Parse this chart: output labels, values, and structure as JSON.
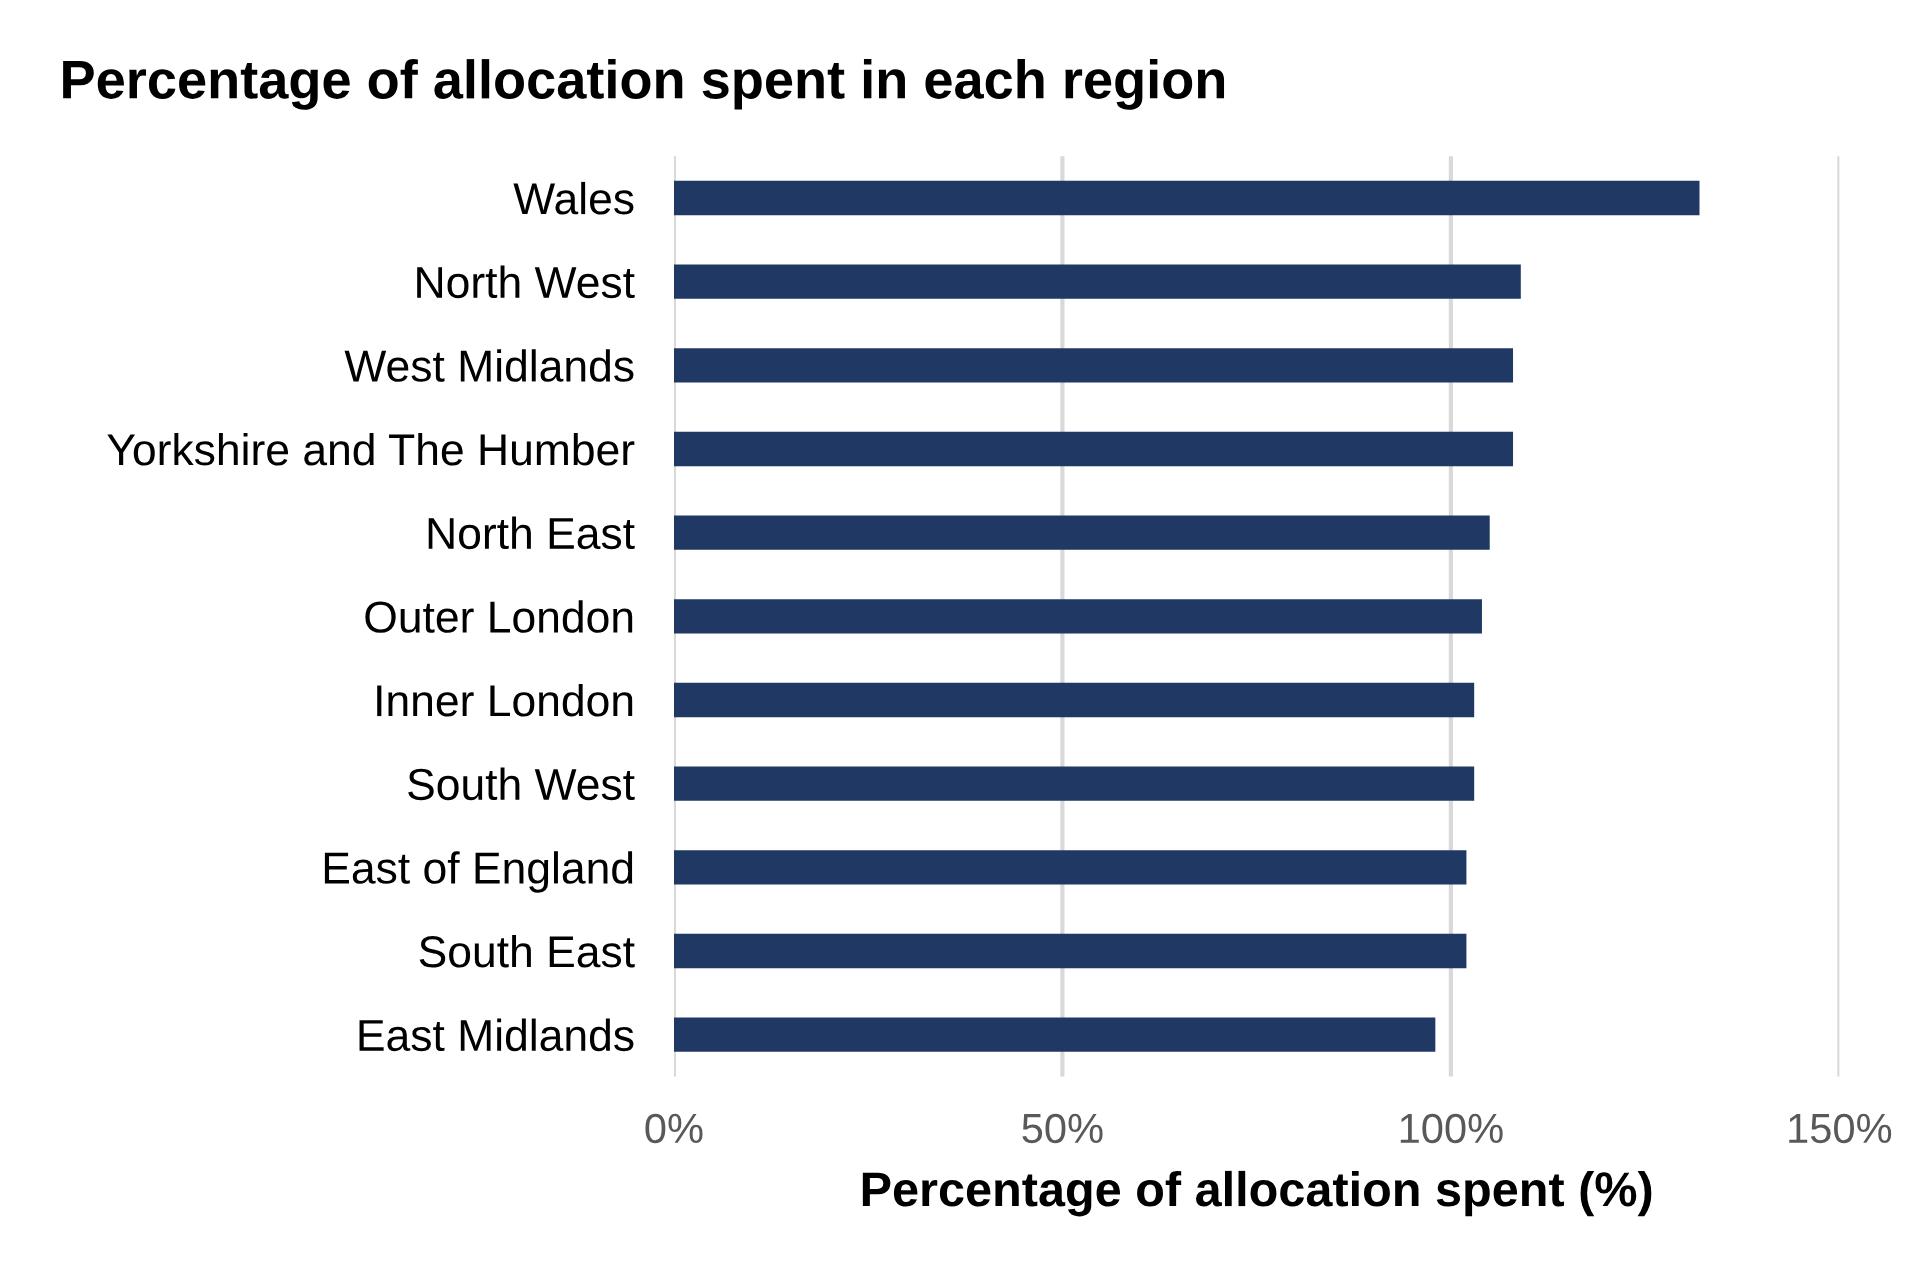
{
  "chart_data": {
    "type": "bar",
    "orientation": "horizontal",
    "title": "Percentage of allocation spent in each region",
    "xlabel": "Percentage of allocation spent (%)",
    "categories": [
      "Wales",
      "North West",
      "West Midlands",
      "Yorkshire and The Humber",
      "North East",
      "Outer London",
      "Inner London",
      "South West",
      "East of England",
      "South East",
      "East Midlands"
    ],
    "values": [
      132,
      109,
      108,
      108,
      105,
      104,
      103,
      103,
      102,
      102,
      98
    ],
    "color": "#203864",
    "xlim": [
      0,
      150
    ],
    "xticks": [
      {
        "value": 0,
        "label": "0%"
      },
      {
        "value": 50,
        "label": "50%"
      },
      {
        "value": 100,
        "label": "100%"
      },
      {
        "value": 150,
        "label": "150%"
      }
    ],
    "grid": "x",
    "legend": false
  }
}
